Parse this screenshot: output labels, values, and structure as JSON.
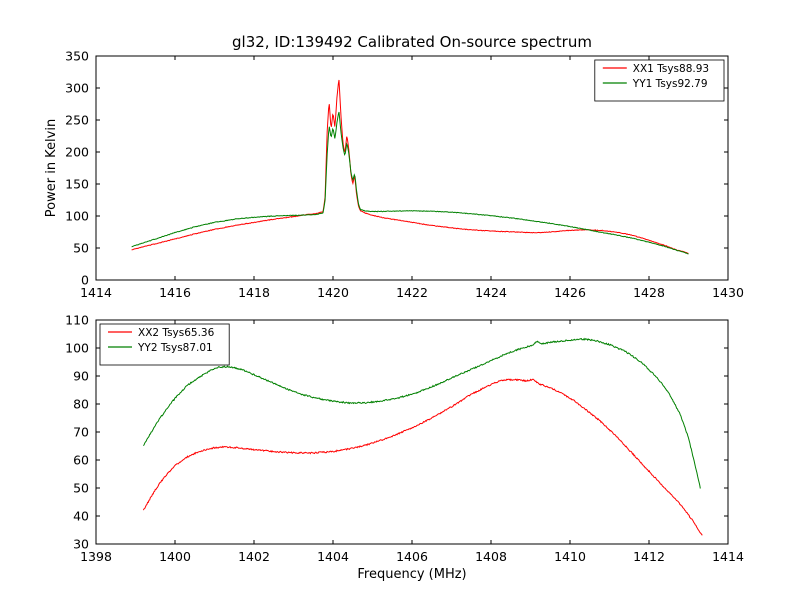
{
  "figure": {
    "title": "gl32, ID:139492 Calibrated On-source spectrum",
    "background": "#ffffff"
  },
  "chart_data": [
    {
      "type": "line",
      "title": "gl32, ID:139492 Calibrated On-source spectrum",
      "xlabel": "",
      "ylabel": "Power in Kelvin",
      "xlim": [
        1414,
        1430
      ],
      "ylim": [
        0,
        350
      ],
      "xticks": [
        1414,
        1416,
        1418,
        1420,
        1422,
        1424,
        1426,
        1428,
        1430
      ],
      "yticks": [
        0,
        50,
        100,
        150,
        200,
        250,
        300,
        350
      ],
      "grid": false,
      "noise": 1.0,
      "legend": {
        "position": "upper right",
        "entries": [
          {
            "label": "XX1 Tsys88.93",
            "color": "#ff0000"
          },
          {
            "label": "YY1 Tsys92.79",
            "color": "#008000"
          }
        ]
      },
      "series": [
        {
          "id": "xx1",
          "name": "XX1 Tsys88.93",
          "color": "#ff0000",
          "points": [
            [
              1414.9,
              47
            ],
            [
              1415.2,
              52
            ],
            [
              1415.6,
              58
            ],
            [
              1416.0,
              64
            ],
            [
              1416.5,
              72
            ],
            [
              1417.0,
              79
            ],
            [
              1417.5,
              85
            ],
            [
              1418.0,
              90
            ],
            [
              1418.5,
              95
            ],
            [
              1419.0,
              99
            ],
            [
              1419.3,
              102
            ],
            [
              1419.6,
              104
            ],
            [
              1419.75,
              107
            ],
            [
              1419.8,
              130
            ],
            [
              1419.85,
              230
            ],
            [
              1419.9,
              280
            ],
            [
              1419.95,
              235
            ],
            [
              1420.0,
              262
            ],
            [
              1420.05,
              238
            ],
            [
              1420.1,
              285
            ],
            [
              1420.15,
              315
            ],
            [
              1420.2,
              258
            ],
            [
              1420.25,
              215
            ],
            [
              1420.3,
              198
            ],
            [
              1420.35,
              226
            ],
            [
              1420.4,
              204
            ],
            [
              1420.45,
              168
            ],
            [
              1420.5,
              150
            ],
            [
              1420.55,
              163
            ],
            [
              1420.6,
              132
            ],
            [
              1420.65,
              114
            ],
            [
              1420.7,
              108
            ],
            [
              1420.8,
              105
            ],
            [
              1421.0,
              101
            ],
            [
              1421.3,
              97
            ],
            [
              1421.6,
              94
            ],
            [
              1422.0,
              90
            ],
            [
              1422.4,
              86
            ],
            [
              1422.8,
              83
            ],
            [
              1423.2,
              80
            ],
            [
              1423.6,
              78
            ],
            [
              1424.0,
              76.5
            ],
            [
              1424.4,
              75.5
            ],
            [
              1424.8,
              74.5
            ],
            [
              1425.2,
              74
            ],
            [
              1425.6,
              75.5
            ],
            [
              1426.0,
              77.5
            ],
            [
              1426.4,
              78.5
            ],
            [
              1426.8,
              77.5
            ],
            [
              1427.2,
              74.5
            ],
            [
              1427.5,
              71
            ],
            [
              1427.8,
              66
            ],
            [
              1428.1,
              60
            ],
            [
              1428.4,
              54
            ],
            [
              1428.7,
              47
            ],
            [
              1429.0,
              42
            ]
          ]
        },
        {
          "id": "yy1",
          "name": "YY1 Tsys92.79",
          "color": "#008000",
          "points": [
            [
              1414.9,
              52
            ],
            [
              1415.2,
              58
            ],
            [
              1415.6,
              66
            ],
            [
              1416.0,
              74
            ],
            [
              1416.5,
              83
            ],
            [
              1417.0,
              90
            ],
            [
              1417.5,
              95
            ],
            [
              1418.0,
              98
            ],
            [
              1418.5,
              100
            ],
            [
              1419.0,
              101
            ],
            [
              1419.3,
              101.5
            ],
            [
              1419.6,
              102.5
            ],
            [
              1419.75,
              105
            ],
            [
              1419.8,
              125
            ],
            [
              1419.85,
              195
            ],
            [
              1419.9,
              242
            ],
            [
              1419.95,
              222
            ],
            [
              1420.0,
              238
            ],
            [
              1420.05,
              220
            ],
            [
              1420.1,
              246
            ],
            [
              1420.15,
              264
            ],
            [
              1420.2,
              232
            ],
            [
              1420.25,
              208
            ],
            [
              1420.3,
              194
            ],
            [
              1420.35,
              214
            ],
            [
              1420.4,
              198
            ],
            [
              1420.45,
              170
            ],
            [
              1420.5,
              156
            ],
            [
              1420.55,
              166
            ],
            [
              1420.6,
              138
            ],
            [
              1420.65,
              117
            ],
            [
              1420.7,
              110
            ],
            [
              1420.8,
              108
            ],
            [
              1421.0,
              107
            ],
            [
              1421.5,
              107.5
            ],
            [
              1422.0,
              108
            ],
            [
              1422.5,
              107.5
            ],
            [
              1423.0,
              106
            ],
            [
              1423.5,
              103.5
            ],
            [
              1424.0,
              100.5
            ],
            [
              1424.5,
              97
            ],
            [
              1425.0,
              93
            ],
            [
              1425.5,
              88.5
            ],
            [
              1426.0,
              83.5
            ],
            [
              1426.4,
              79
            ],
            [
              1426.8,
              74.5
            ],
            [
              1427.2,
              70
            ],
            [
              1427.6,
              65
            ],
            [
              1428.0,
              59
            ],
            [
              1428.4,
              52.5
            ],
            [
              1428.7,
              46.5
            ],
            [
              1429.0,
              41
            ]
          ]
        }
      ]
    },
    {
      "type": "line",
      "title": "",
      "xlabel": "Frequency (MHz)",
      "ylabel": "",
      "xlim": [
        1398,
        1414
      ],
      "ylim": [
        30,
        110
      ],
      "xticks": [
        1398,
        1400,
        1402,
        1404,
        1406,
        1408,
        1410,
        1412,
        1414
      ],
      "yticks": [
        30,
        40,
        50,
        60,
        70,
        80,
        90,
        100,
        110
      ],
      "grid": false,
      "noise": 0.5,
      "legend": {
        "position": "upper left",
        "entries": [
          {
            "label": "XX2 Tsys65.36",
            "color": "#ff0000"
          },
          {
            "label": "YY2 Tsys87.01",
            "color": "#008000"
          }
        ]
      },
      "series": [
        {
          "id": "xx2",
          "name": "XX2 Tsys65.36",
          "color": "#ff0000",
          "points": [
            [
              1399.2,
              42
            ],
            [
              1399.4,
              47
            ],
            [
              1399.6,
              51.5
            ],
            [
              1399.8,
              55
            ],
            [
              1400.0,
              58
            ],
            [
              1400.3,
              61
            ],
            [
              1400.6,
              63
            ],
            [
              1400.9,
              64.2
            ],
            [
              1401.2,
              64.6
            ],
            [
              1401.5,
              64.5
            ],
            [
              1401.8,
              64
            ],
            [
              1402.1,
              63.5
            ],
            [
              1402.5,
              63
            ],
            [
              1403.0,
              62.6
            ],
            [
              1403.5,
              62.5
            ],
            [
              1404.0,
              63
            ],
            [
              1404.5,
              64.2
            ],
            [
              1405.0,
              66
            ],
            [
              1405.5,
              68.5
            ],
            [
              1406.0,
              71.5
            ],
            [
              1406.5,
              75
            ],
            [
              1407.0,
              79
            ],
            [
              1407.5,
              83.5
            ],
            [
              1408.0,
              87
            ],
            [
              1408.3,
              88.6
            ],
            [
              1408.6,
              88.7
            ],
            [
              1408.9,
              88.2
            ],
            [
              1409.05,
              88.8
            ],
            [
              1409.2,
              87.3
            ],
            [
              1409.5,
              85.8
            ],
            [
              1409.8,
              83.8
            ],
            [
              1410.1,
              81.2
            ],
            [
              1410.4,
              78
            ],
            [
              1410.8,
              73.5
            ],
            [
              1411.2,
              68
            ],
            [
              1411.6,
              62
            ],
            [
              1412.0,
              56
            ],
            [
              1412.4,
              50
            ],
            [
              1412.8,
              44
            ],
            [
              1413.1,
              38.5
            ],
            [
              1413.35,
              33
            ]
          ]
        },
        {
          "id": "yy2",
          "name": "YY2 Tsys87.01",
          "color": "#008000",
          "points": [
            [
              1399.2,
              65
            ],
            [
              1399.4,
              70
            ],
            [
              1399.6,
              74.5
            ],
            [
              1399.8,
              78.5
            ],
            [
              1400.0,
              82
            ],
            [
              1400.3,
              86.5
            ],
            [
              1400.6,
              89.5
            ],
            [
              1400.9,
              92
            ],
            [
              1401.1,
              93.2
            ],
            [
              1401.4,
              93.3
            ],
            [
              1401.7,
              92.2
            ],
            [
              1402.0,
              90.5
            ],
            [
              1402.4,
              88
            ],
            [
              1402.8,
              85.5
            ],
            [
              1403.2,
              83.5
            ],
            [
              1403.6,
              82
            ],
            [
              1404.0,
              81
            ],
            [
              1404.4,
              80.4
            ],
            [
              1404.8,
              80.4
            ],
            [
              1405.2,
              81
            ],
            [
              1405.6,
              82
            ],
            [
              1406.0,
              83.5
            ],
            [
              1406.4,
              85.5
            ],
            [
              1406.8,
              88
            ],
            [
              1407.2,
              90.5
            ],
            [
              1407.6,
              93
            ],
            [
              1408.0,
              95.5
            ],
            [
              1408.4,
              98
            ],
            [
              1408.8,
              100
            ],
            [
              1409.05,
              101
            ],
            [
              1409.15,
              102.3
            ],
            [
              1409.3,
              101.6
            ],
            [
              1409.6,
              102.2
            ],
            [
              1410.0,
              102.8
            ],
            [
              1410.3,
              103.2
            ],
            [
              1410.6,
              102.8
            ],
            [
              1411.0,
              101.2
            ],
            [
              1411.4,
              98.8
            ],
            [
              1411.8,
              95
            ],
            [
              1412.2,
              89.5
            ],
            [
              1412.5,
              84
            ],
            [
              1412.8,
              76
            ],
            [
              1413.0,
              68
            ],
            [
              1413.15,
              59
            ],
            [
              1413.3,
              50
            ]
          ]
        }
      ]
    }
  ]
}
